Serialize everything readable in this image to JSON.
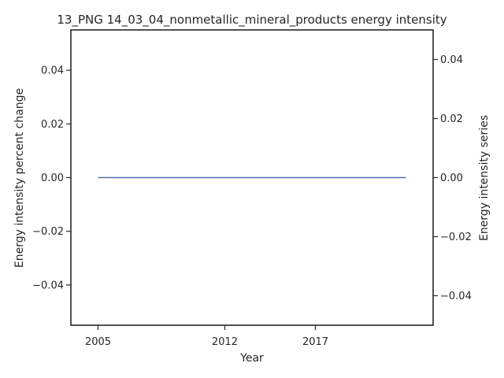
{
  "chart_data": {
    "type": "line",
    "title": "13_PNG 14_03_04_nonmetallic_mineral_products energy intensity",
    "xlabel": "Year",
    "ylabel": "Energy intensity percent change",
    "ylabel_right": "Energy intensity series",
    "xlim": [
      2003.5,
      2023.5
    ],
    "ylim": [
      -0.055,
      0.055
    ],
    "ylim_right": [
      -0.05,
      0.05
    ],
    "x_ticks": [
      2005,
      2012,
      2017
    ],
    "x_tick_labels": [
      "2005",
      "2012",
      "2017"
    ],
    "y_ticks": [
      -0.04,
      -0.02,
      0.0,
      0.02,
      0.04
    ],
    "y_tick_labels": [
      "−0.04",
      "−0.02",
      "0.00",
      "0.02",
      "0.04"
    ],
    "y_right_ticks": [
      -0.04,
      -0.02,
      0.0,
      0.02,
      0.04
    ],
    "y_right_tick_labels": [
      "−0.04",
      "−0.02",
      "0.00",
      "0.02",
      "0.04"
    ],
    "grid": false,
    "legend": "none",
    "series": [
      {
        "axis": "left",
        "color": "#4c72b0",
        "x": [
          2005,
          2006,
          2007,
          2008,
          2009,
          2010,
          2011,
          2012,
          2013,
          2014,
          2015,
          2016,
          2017,
          2018,
          2019,
          2020,
          2021,
          2022
        ],
        "values": [
          0,
          0,
          0,
          0,
          0,
          0,
          0,
          0,
          0,
          0,
          0,
          0,
          0,
          0,
          0,
          0,
          0,
          0
        ]
      }
    ]
  }
}
